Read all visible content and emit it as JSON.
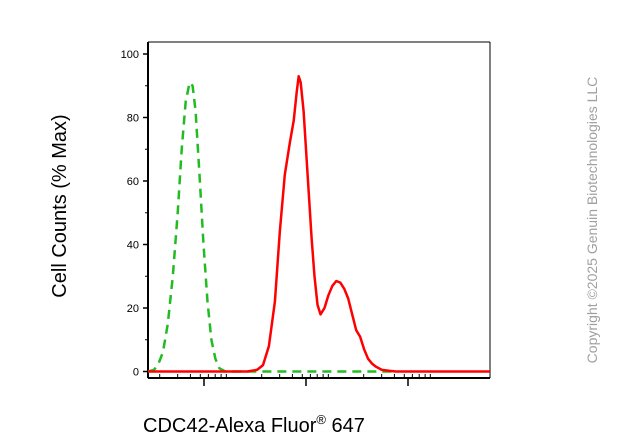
{
  "chart_data": {
    "type": "line",
    "title": "",
    "xlabel": "CDC42-Alexa Fluor",
    "xlabel_superscript": "®",
    "xlabel_suffix": " 647",
    "ylabel": "Cell Counts (% Max)",
    "x_scale": "log",
    "x_tick_labels_shown": false,
    "ylim": [
      0,
      100
    ],
    "y_ticks": [
      "0",
      "20",
      "40",
      "60",
      "80",
      "100"
    ],
    "grid": false,
    "legend": "none",
    "watermark": "Copyright ©2025 Genuin Biotechnologies LLC",
    "colors": {
      "control": "#22bb22",
      "sample": "#ff0000",
      "axis": "#000000",
      "watermark": "#a0a0a0"
    },
    "series": [
      {
        "style": "dashed",
        "color": "#22bb22",
        "points": [
          [
            0,
            0
          ],
          [
            6,
            0.5
          ],
          [
            10,
            2
          ],
          [
            15,
            6
          ],
          [
            20,
            15
          ],
          [
            25,
            30
          ],
          [
            30,
            50
          ],
          [
            34,
            70
          ],
          [
            38,
            85
          ],
          [
            42,
            91
          ],
          [
            45,
            90
          ],
          [
            48,
            82
          ],
          [
            52,
            62
          ],
          [
            56,
            40
          ],
          [
            60,
            22
          ],
          [
            64,
            10
          ],
          [
            68,
            4
          ],
          [
            72,
            1
          ],
          [
            78,
            0
          ],
          [
            250,
            0
          ]
        ]
      },
      {
        "style": "solid",
        "color": "#ff0000",
        "points": [
          [
            0,
            0
          ],
          [
            86,
            0
          ],
          [
            100,
            0
          ],
          [
            110,
            0.5
          ],
          [
            116,
            2
          ],
          [
            122,
            8
          ],
          [
            128,
            22
          ],
          [
            133,
            44
          ],
          [
            138,
            62
          ],
          [
            143,
            72
          ],
          [
            147,
            79
          ],
          [
            150,
            88
          ],
          [
            152,
            93
          ],
          [
            154,
            91
          ],
          [
            157,
            82
          ],
          [
            161,
            62
          ],
          [
            165,
            42
          ],
          [
            168,
            30
          ],
          [
            171,
            21
          ],
          [
            174,
            18
          ],
          [
            178,
            20
          ],
          [
            182,
            24
          ],
          [
            186,
            27
          ],
          [
            190,
            28.5
          ],
          [
            194,
            28
          ],
          [
            198,
            26
          ],
          [
            202,
            23
          ],
          [
            206,
            18
          ],
          [
            210,
            13
          ],
          [
            214,
            11
          ],
          [
            218,
            7
          ],
          [
            222,
            4
          ],
          [
            226,
            2.5
          ],
          [
            230,
            1.5
          ],
          [
            236,
            0.5
          ],
          [
            244,
            0.2
          ],
          [
            250,
            0
          ],
          [
            345,
            0
          ]
        ]
      }
    ]
  }
}
